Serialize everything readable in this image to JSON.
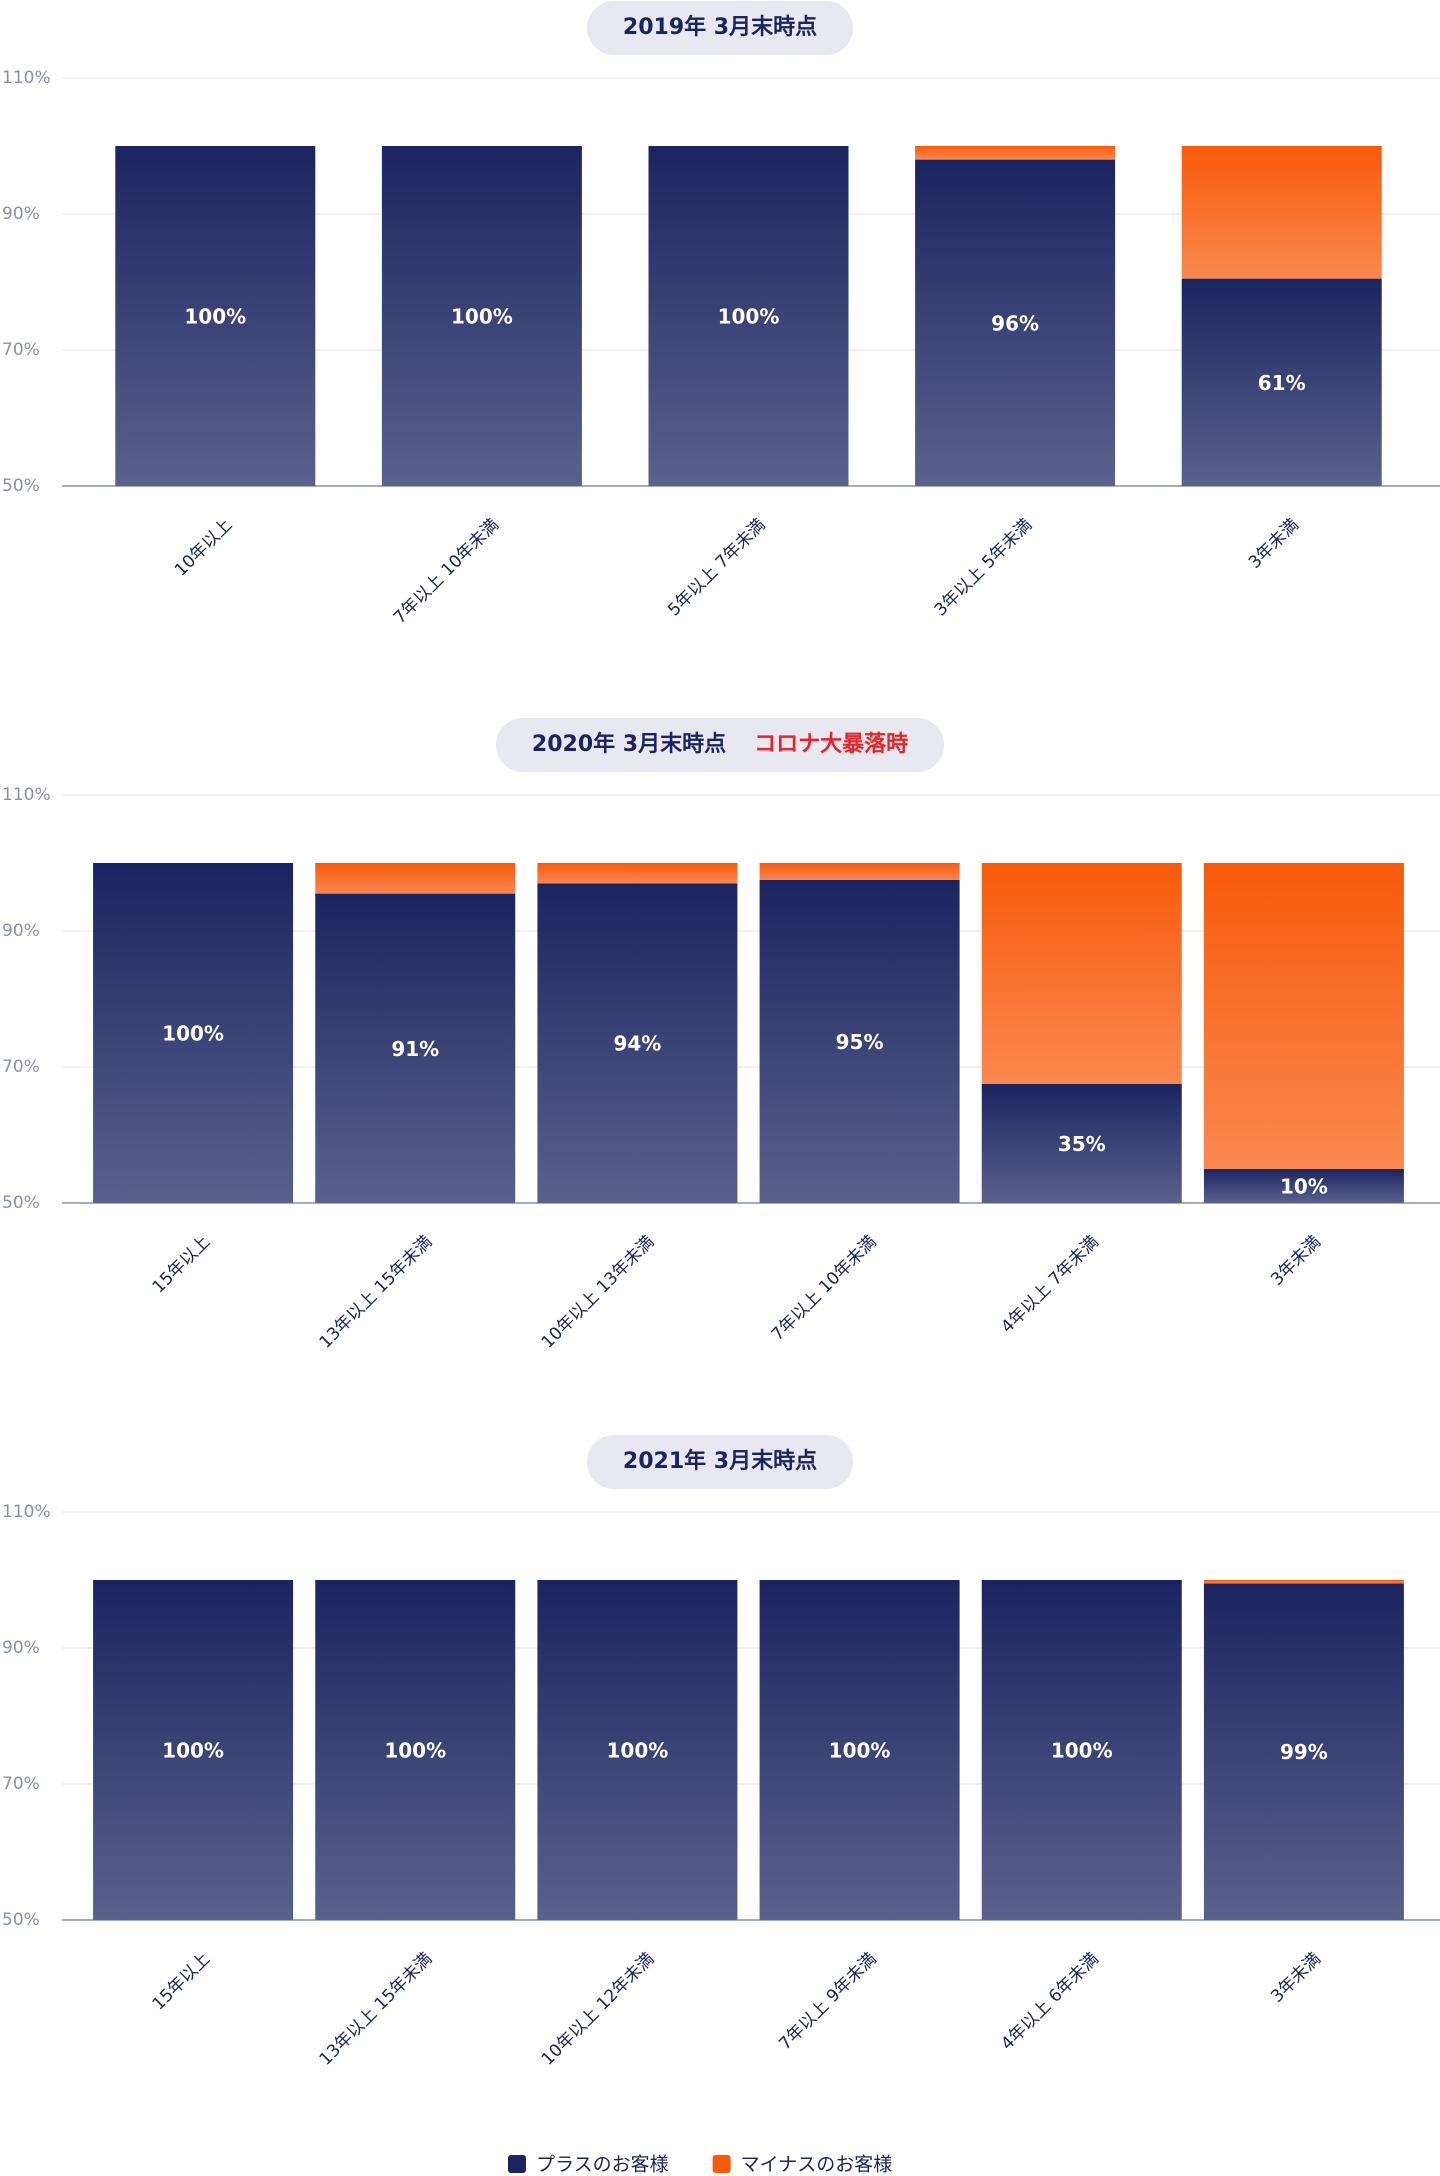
{
  "chart_data": [
    {
      "type": "bar",
      "stacked": true,
      "title": "2019年 3月末時点",
      "categories": [
        "10年以上",
        "7年以上 10年未満",
        "5年以上 7年未満",
        "3年以上 5年未満",
        "3年未満"
      ],
      "series": [
        {
          "name": "プラスのお客様",
          "color": "#1b2460",
          "values": [
            100,
            100,
            100,
            96,
            61
          ],
          "value_labels": [
            "100%",
            "100%",
            "100%",
            "96%",
            "61%"
          ]
        },
        {
          "name": "マイナスのお客様",
          "color": "#f85a0a",
          "values": [
            0,
            0,
            0,
            4,
            39
          ]
        }
      ],
      "ylim": [
        0,
        120
      ],
      "yticks": [
        {
          "value": 0,
          "label": "50%"
        },
        {
          "value": 40,
          "label": "70%"
        },
        {
          "value": 80,
          "label": "90%"
        },
        {
          "value": 120,
          "label": "110%"
        }
      ],
      "grid": true
    },
    {
      "type": "bar",
      "stacked": true,
      "title": "2020年 3月末時点",
      "annotation": "コロナ大暴落時",
      "categories": [
        "15年以上",
        "13年以上 15年未満",
        "10年以上 13年未満",
        "7年以上 10年未満",
        "4年以上 7年未満",
        "3年未満"
      ],
      "series": [
        {
          "color": "#1b2460",
          "values": [
            100,
            91,
            94,
            95,
            35,
            10
          ],
          "value_labels": [
            "100%",
            "91%",
            "94%",
            "95%",
            "35%",
            "10%"
          ]
        },
        {
          "color": "#f85a0a",
          "values": [
            0,
            9,
            6,
            5,
            65,
            90
          ]
        }
      ],
      "ylim": [
        0,
        120
      ],
      "yticks": [
        {
          "value": 0,
          "label": "50%"
        },
        {
          "value": 40,
          "label": "70%"
        },
        {
          "value": 80,
          "label": "90%"
        },
        {
          "value": 120,
          "label": "110%"
        }
      ],
      "grid": true
    },
    {
      "type": "bar",
      "stacked": true,
      "title": "2021年 3月末時点",
      "categories": [
        "15年以上",
        "13年以上 15年未満",
        "10年以上 12年未満",
        "7年以上 9年未満",
        "4年以上 6年未満",
        "3年未満"
      ],
      "series": [
        {
          "color": "#1b2460",
          "values": [
            100,
            100,
            100,
            100,
            100,
            99
          ],
          "value_labels": [
            "100%",
            "100%",
            "100%",
            "100%",
            "100%",
            "99%"
          ]
        },
        {
          "color": "#f85a0a",
          "values": [
            0,
            0,
            0,
            0,
            0,
            1
          ]
        }
      ],
      "ylim": [
        0,
        120
      ],
      "yticks": [
        {
          "value": 0,
          "label": "50%"
        },
        {
          "value": 40,
          "label": "70%"
        },
        {
          "value": 80,
          "label": "90%"
        },
        {
          "value": 120,
          "label": "110%"
        }
      ],
      "grid": true
    }
  ]
}
